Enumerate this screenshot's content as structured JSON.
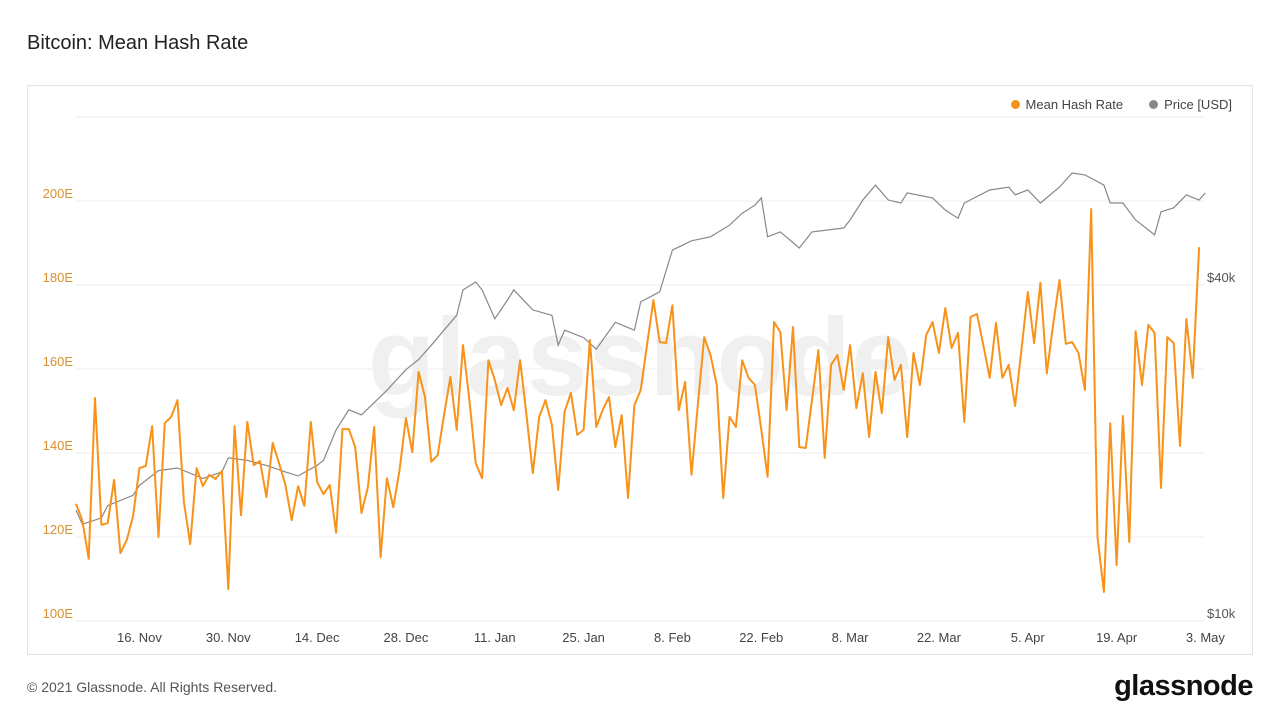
{
  "title": "Bitcoin: Mean Hash Rate",
  "footer": "© 2021 Glassnode. All Rights Reserved.",
  "logo": "glassnode",
  "watermark": "glassnode",
  "colors": {
    "hash": "#f7931a",
    "price": "#888888",
    "left_axis": "#d9902e",
    "right_axis": "#555555",
    "grid": "#eeeeee"
  },
  "chart_data": {
    "type": "line",
    "title": "Bitcoin: Mean Hash Rate",
    "x_start": "2020-11-06",
    "x_end": "2021-05-02",
    "x_ticks": [
      {
        "label": "16. Nov",
        "day": 10
      },
      {
        "label": "30. Nov",
        "day": 24
      },
      {
        "label": "14. Dec",
        "day": 38
      },
      {
        "label": "28. Dec",
        "day": 52
      },
      {
        "label": "11. Jan",
        "day": 66
      },
      {
        "label": "25. Jan",
        "day": 80
      },
      {
        "label": "8. Feb",
        "day": 94
      },
      {
        "label": "22. Feb",
        "day": 108
      },
      {
        "label": "8. Mar",
        "day": 122
      },
      {
        "label": "22. Mar",
        "day": 136
      },
      {
        "label": "5. Apr",
        "day": 150
      },
      {
        "label": "19. Apr",
        "day": 164
      },
      {
        "label": "3. May",
        "day": 178
      }
    ],
    "y_left": {
      "label": "Mean Hash Rate",
      "unit": "E",
      "range": [
        100,
        220
      ],
      "ticks": [
        {
          "label": "100E",
          "value": 100
        },
        {
          "label": "120E",
          "value": 120
        },
        {
          "label": "140E",
          "value": 140
        },
        {
          "label": "160E",
          "value": 160
        },
        {
          "label": "180E",
          "value": 180
        },
        {
          "label": "200E",
          "value": 200
        }
      ]
    },
    "y_right": {
      "label": "Price [USD]",
      "scale": "log",
      "range": [
        10000,
        80000
      ],
      "ticks": [
        {
          "label": "$10k",
          "value": 10000
        },
        {
          "label": "$40k",
          "value": 40000
        }
      ]
    },
    "legend": {
      "position": "top-right",
      "items": [
        "Mean Hash Rate",
        "Price [USD]"
      ]
    },
    "series": [
      {
        "name": "Mean Hash Rate",
        "axis": "left",
        "values": [
          127.9,
          124.0,
          114.8,
          153.1,
          122.9,
          123.3,
          133.6,
          116.2,
          119.3,
          125.0,
          136.4,
          136.9,
          146.4,
          120.0,
          147.1,
          148.6,
          152.6,
          128.3,
          118.3,
          136.4,
          132.1,
          134.8,
          133.8,
          135.7,
          107.6,
          146.4,
          125.2,
          147.4,
          137.1,
          138.1,
          129.5,
          142.4,
          137.6,
          132.4,
          124.0,
          132.1,
          127.4,
          147.4,
          133.1,
          130.2,
          132.4,
          121.0,
          145.7,
          145.7,
          141.4,
          125.7,
          131.9,
          146.2,
          115.2,
          134.0,
          127.1,
          136.0,
          148.3,
          140.2,
          159.3,
          153.3,
          137.9,
          139.5,
          149.0,
          158.1,
          145.5,
          165.7,
          152.6,
          137.6,
          134.0,
          162.1,
          157.4,
          151.4,
          155.5,
          150.2,
          162.1,
          149.0,
          135.2,
          148.6,
          152.6,
          146.7,
          131.2,
          149.8,
          154.3,
          144.3,
          145.5,
          166.9,
          146.2,
          150.2,
          153.3,
          141.4,
          149.0,
          129.3,
          151.4,
          155.0,
          165.7,
          176.4,
          166.4,
          166.2,
          175.2,
          150.2,
          156.9,
          134.8,
          151.4,
          167.6,
          163.3,
          156.2,
          129.3,
          148.6,
          146.2,
          162.1,
          157.9,
          156.2,
          145.5,
          134.3,
          171.2,
          168.8,
          150.2,
          170.0,
          141.4,
          141.2,
          152.6,
          164.5,
          138.8,
          161.0,
          163.3,
          155.0,
          165.7,
          150.7,
          159.0,
          143.8,
          159.3,
          149.5,
          167.6,
          157.4,
          161.0,
          143.8,
          163.8,
          156.2,
          168.1,
          171.2,
          163.8,
          174.5,
          165.0,
          168.6,
          147.4,
          172.4,
          173.1,
          165.7,
          157.9,
          171.0,
          157.9,
          161.0,
          151.2,
          164.5,
          178.3,
          166.2,
          180.5,
          159.0,
          170.5,
          181.2,
          166.0,
          166.4,
          163.8,
          155.0,
          198.1,
          120.0,
          106.9,
          147.1,
          113.3,
          148.8,
          118.8,
          169.0,
          156.2,
          170.5,
          168.6,
          131.7,
          167.6,
          166.2,
          141.7,
          171.9,
          157.9,
          189.0
        ]
      },
      {
        "name": "Price [USD]",
        "axis": "right",
        "points": [
          [
            0,
            15800
          ],
          [
            1,
            14900
          ],
          [
            4,
            15300
          ],
          [
            5,
            16100
          ],
          [
            9,
            16800
          ],
          [
            10,
            17500
          ],
          [
            13,
            18600
          ],
          [
            16,
            18800
          ],
          [
            20,
            18000
          ],
          [
            23,
            18500
          ],
          [
            24,
            19600
          ],
          [
            27,
            19400
          ],
          [
            30,
            19000
          ],
          [
            33,
            18500
          ],
          [
            35,
            18200
          ],
          [
            38,
            19000
          ],
          [
            39,
            19400
          ],
          [
            41,
            22000
          ],
          [
            43,
            23900
          ],
          [
            45,
            23400
          ],
          [
            49,
            25900
          ],
          [
            52,
            28200
          ],
          [
            54,
            29400
          ],
          [
            56,
            31200
          ],
          [
            58,
            33200
          ],
          [
            60,
            35300
          ],
          [
            61,
            39200
          ],
          [
            63,
            40500
          ],
          [
            64,
            39200
          ],
          [
            66,
            34800
          ],
          [
            68,
            37600
          ],
          [
            69,
            39200
          ],
          [
            72,
            36100
          ],
          [
            75,
            35300
          ],
          [
            76,
            31200
          ],
          [
            77,
            33200
          ],
          [
            80,
            32200
          ],
          [
            82,
            30700
          ],
          [
            85,
            34300
          ],
          [
            88,
            33200
          ],
          [
            89,
            37300
          ],
          [
            92,
            38900
          ],
          [
            94,
            46200
          ],
          [
            97,
            48000
          ],
          [
            100,
            48800
          ],
          [
            103,
            51200
          ],
          [
            105,
            53800
          ],
          [
            107,
            55600
          ],
          [
            108,
            57300
          ],
          [
            109,
            48800
          ],
          [
            111,
            49800
          ],
          [
            114,
            46600
          ],
          [
            116,
            49800
          ],
          [
            121,
            50600
          ],
          [
            122,
            52300
          ],
          [
            124,
            56800
          ],
          [
            126,
            60400
          ],
          [
            128,
            56800
          ],
          [
            130,
            56100
          ],
          [
            131,
            58500
          ],
          [
            135,
            57300
          ],
          [
            137,
            54500
          ],
          [
            139,
            52700
          ],
          [
            140,
            56100
          ],
          [
            144,
            59200
          ],
          [
            147,
            59900
          ],
          [
            148,
            58000
          ],
          [
            150,
            59200
          ],
          [
            152,
            56100
          ],
          [
            155,
            59900
          ],
          [
            157,
            63500
          ],
          [
            159,
            63000
          ],
          [
            162,
            60400
          ],
          [
            163,
            56100
          ],
          [
            165,
            56100
          ],
          [
            167,
            52300
          ],
          [
            170,
            49200
          ],
          [
            171,
            54100
          ],
          [
            173,
            55000
          ],
          [
            175,
            58000
          ],
          [
            177,
            56800
          ],
          [
            178,
            58500
          ]
        ]
      }
    ]
  }
}
